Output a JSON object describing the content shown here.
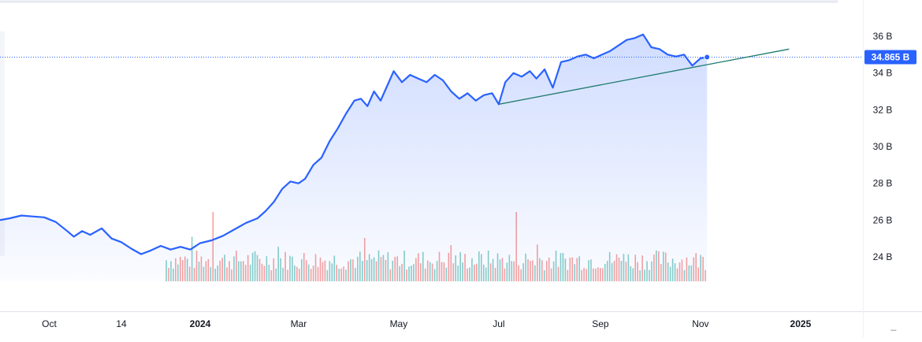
{
  "chart_data": {
    "type": "area",
    "title": "",
    "xlabel": "",
    "ylabel": "",
    "ylim": [
      22.9,
      37.1
    ],
    "y_ticks": [
      "24 B",
      "26 B",
      "28 B",
      "30 B",
      "32 B",
      "34 B",
      "36 B"
    ],
    "y_tick_values": [
      24,
      26,
      28,
      30,
      32,
      34,
      36
    ],
    "x_ticks": [
      {
        "label": "Oct",
        "date": "2023-10-01",
        "bold": false
      },
      {
        "label": "14",
        "date": "2023-11-14",
        "bold": false
      },
      {
        "label": "2024",
        "date": "2024-01-01",
        "bold": true
      },
      {
        "label": "Mar",
        "date": "2024-03-01",
        "bold": false
      },
      {
        "label": "May",
        "date": "2024-05-01",
        "bold": false
      },
      {
        "label": "Jul",
        "date": "2024-07-01",
        "bold": false
      },
      {
        "label": "Sep",
        "date": "2024-09-01",
        "bold": false
      },
      {
        "label": "Nov",
        "date": "2024-11-01",
        "bold": false
      },
      {
        "label": "2025",
        "date": "2025-01-01",
        "bold": true
      }
    ],
    "xlim": [
      "2023-09-01",
      "2025-02-08"
    ],
    "grid": false,
    "legend": "none",
    "last_value_label": "34.865 B",
    "last_value": 34.865,
    "series": [
      {
        "kind": "line",
        "color": "#2962ff",
        "points": [
          [
            "2023-09-01",
            26.0
          ],
          [
            "2023-09-07",
            26.1
          ],
          [
            "2023-09-14",
            26.25
          ],
          [
            "2023-09-21",
            26.2
          ],
          [
            "2023-09-28",
            26.15
          ],
          [
            "2023-10-05",
            25.9
          ],
          [
            "2023-10-12",
            25.4
          ],
          [
            "2023-10-16",
            25.1
          ],
          [
            "2023-10-21",
            25.4
          ],
          [
            "2023-10-26",
            25.2
          ],
          [
            "2023-11-02",
            25.55
          ],
          [
            "2023-11-08",
            25.0
          ],
          [
            "2023-11-14",
            24.8
          ],
          [
            "2023-11-20",
            24.45
          ],
          [
            "2023-11-26",
            24.15
          ],
          [
            "2023-12-02",
            24.35
          ],
          [
            "2023-12-08",
            24.6
          ],
          [
            "2023-12-14",
            24.4
          ],
          [
            "2023-12-20",
            24.55
          ],
          [
            "2023-12-26",
            24.4
          ],
          [
            "2024-01-01",
            24.75
          ],
          [
            "2024-01-08",
            24.9
          ],
          [
            "2024-01-15",
            25.15
          ],
          [
            "2024-01-22",
            25.5
          ],
          [
            "2024-01-29",
            25.85
          ],
          [
            "2024-02-05",
            26.1
          ],
          [
            "2024-02-10",
            26.5
          ],
          [
            "2024-02-15",
            27.0
          ],
          [
            "2024-02-20",
            27.7
          ],
          [
            "2024-02-25",
            28.1
          ],
          [
            "2024-03-01",
            28.0
          ],
          [
            "2024-03-05",
            28.25
          ],
          [
            "2024-03-10",
            29.0
          ],
          [
            "2024-03-15",
            29.4
          ],
          [
            "2024-03-20",
            30.3
          ],
          [
            "2024-03-25",
            31.0
          ],
          [
            "2024-03-30",
            31.8
          ],
          [
            "2024-04-04",
            32.5
          ],
          [
            "2024-04-08",
            32.6
          ],
          [
            "2024-04-12",
            32.2
          ],
          [
            "2024-04-16",
            33.0
          ],
          [
            "2024-04-20",
            32.5
          ],
          [
            "2024-04-24",
            33.3
          ],
          [
            "2024-04-28",
            34.1
          ],
          [
            "2024-05-03",
            33.5
          ],
          [
            "2024-05-08",
            33.9
          ],
          [
            "2024-05-13",
            33.7
          ],
          [
            "2024-05-18",
            33.5
          ],
          [
            "2024-05-23",
            33.9
          ],
          [
            "2024-05-28",
            33.6
          ],
          [
            "2024-06-02",
            33.0
          ],
          [
            "2024-06-07",
            32.6
          ],
          [
            "2024-06-12",
            32.9
          ],
          [
            "2024-06-17",
            32.5
          ],
          [
            "2024-06-22",
            32.8
          ],
          [
            "2024-06-27",
            32.9
          ],
          [
            "2024-07-01",
            32.3
          ],
          [
            "2024-07-05",
            33.5
          ],
          [
            "2024-07-10",
            34.0
          ],
          [
            "2024-07-15",
            33.8
          ],
          [
            "2024-07-20",
            34.1
          ],
          [
            "2024-07-24",
            33.7
          ],
          [
            "2024-07-29",
            34.2
          ],
          [
            "2024-08-03",
            33.2
          ],
          [
            "2024-08-08",
            34.6
          ],
          [
            "2024-08-13",
            34.7
          ],
          [
            "2024-08-18",
            34.9
          ],
          [
            "2024-08-23",
            35.0
          ],
          [
            "2024-08-28",
            34.8
          ],
          [
            "2024-09-02",
            35.0
          ],
          [
            "2024-09-07",
            35.2
          ],
          [
            "2024-09-12",
            35.5
          ],
          [
            "2024-09-17",
            35.8
          ],
          [
            "2024-09-22",
            35.9
          ],
          [
            "2024-09-27",
            36.1
          ],
          [
            "2024-10-02",
            35.4
          ],
          [
            "2024-10-07",
            35.3
          ],
          [
            "2024-10-12",
            35.0
          ],
          [
            "2024-10-17",
            34.9
          ],
          [
            "2024-10-22",
            35.0
          ],
          [
            "2024-10-27",
            34.4
          ],
          [
            "2024-11-01",
            34.8
          ],
          [
            "2024-11-05",
            34.865
          ]
        ]
      },
      {
        "kind": "trendline",
        "color": "#1e7a6e",
        "points": [
          [
            "2024-07-01",
            32.3
          ],
          [
            "2024-12-25",
            35.3
          ]
        ]
      }
    ],
    "volume": {
      "start": "2023-12-11",
      "end": "2024-11-05",
      "up_color": "#26a69a",
      "down_color": "#ef5350"
    }
  }
}
